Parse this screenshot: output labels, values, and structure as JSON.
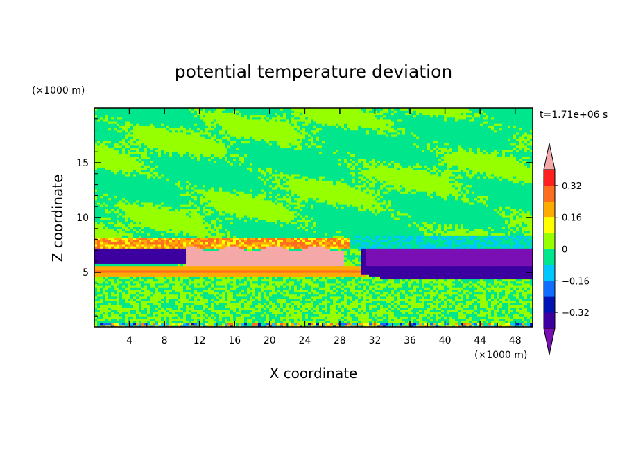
{
  "chart_data": {
    "type": "heatmap",
    "title": "potential temperature deviation",
    "xlabel": "X coordinate",
    "ylabel": "Z coordinate",
    "x_unit": "(×1000 m)",
    "y_unit": "(×1000 m)",
    "time_label": "t=1.71e+06 s",
    "xlim": [
      0,
      50
    ],
    "ylim": [
      0,
      20
    ],
    "x_ticks": [
      4,
      8,
      12,
      16,
      20,
      24,
      28,
      32,
      36,
      40,
      44,
      48
    ],
    "y_ticks": [
      5,
      10,
      15
    ],
    "colorbar": {
      "levels": [
        -0.4,
        -0.32,
        -0.24,
        -0.16,
        -0.08,
        0,
        0.08,
        0.16,
        0.24,
        0.32,
        0.4
      ],
      "labels": [
        "0.32",
        "0.16",
        "0",
        "−0.16",
        "−0.32"
      ],
      "label_values": [
        0.32,
        0.16,
        0,
        -0.16,
        -0.32
      ],
      "colors_low_to_high": [
        "#7a0fb4",
        "#3d00a0",
        "#0014b4",
        "#0f6eff",
        "#00c8ff",
        "#00e68c",
        "#96ff00",
        "#ffff00",
        "#ffaa00",
        "#ff6e1e",
        "#ff2020",
        "#f5a8a8"
      ],
      "extend": "both"
    },
    "regions": [
      {
        "name": "upper-layer",
        "x": [
          0,
          50
        ],
        "z": [
          7.5,
          20
        ],
        "value": 0.02
      },
      {
        "name": "lower-layer",
        "x": [
          0,
          50
        ],
        "z": [
          0,
          4.5
        ],
        "value": 0.04
      },
      {
        "name": "warm-anomaly",
        "x": [
          10,
          29
        ],
        "z": [
          5.5,
          7.3
        ],
        "value": 0.42
      },
      {
        "name": "cold-anomaly",
        "x": [
          31,
          50
        ],
        "z": [
          4.2,
          7.3
        ],
        "value": -0.42
      },
      {
        "name": "cold-band-west",
        "x": [
          0,
          10
        ],
        "z": [
          5.8,
          7.2
        ],
        "value": -0.36
      },
      {
        "name": "warm-band",
        "x": [
          0,
          31
        ],
        "z": [
          4.5,
          5.5
        ],
        "value": 0.2
      }
    ]
  }
}
